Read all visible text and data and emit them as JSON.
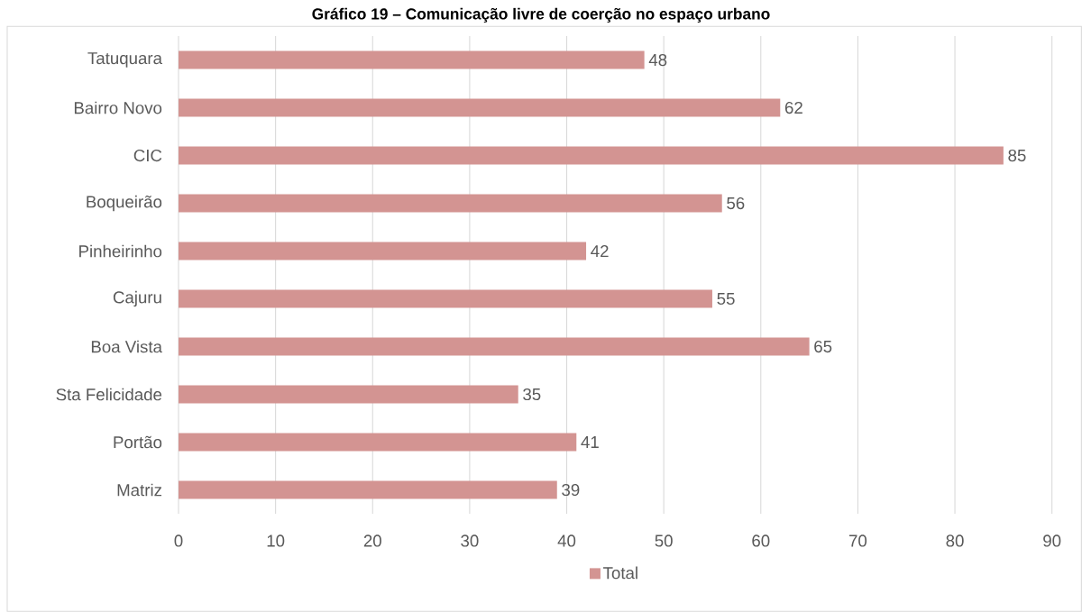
{
  "chart_data": {
    "type": "bar",
    "orientation": "horizontal",
    "title": "Gráfico 19 – Comunicação livre de coerção no espaço urbano",
    "categories": [
      "Tatuquara",
      "Bairro Novo",
      "CIC",
      "Boqueirão",
      "Pinheirinho",
      "Cajuru",
      "Boa Vista",
      "Sta Felicidade",
      "Portão",
      "Matriz"
    ],
    "series": [
      {
        "name": "Total",
        "color": "#d39492",
        "values": [
          48,
          62,
          85,
          56,
          42,
          55,
          65,
          35,
          41,
          39
        ]
      }
    ],
    "xlim": [
      0,
      90
    ],
    "xticks": [
      0,
      10,
      20,
      30,
      40,
      50,
      60,
      70,
      80,
      90
    ],
    "grid": "x",
    "legend": "bottom",
    "data_labels": true
  }
}
